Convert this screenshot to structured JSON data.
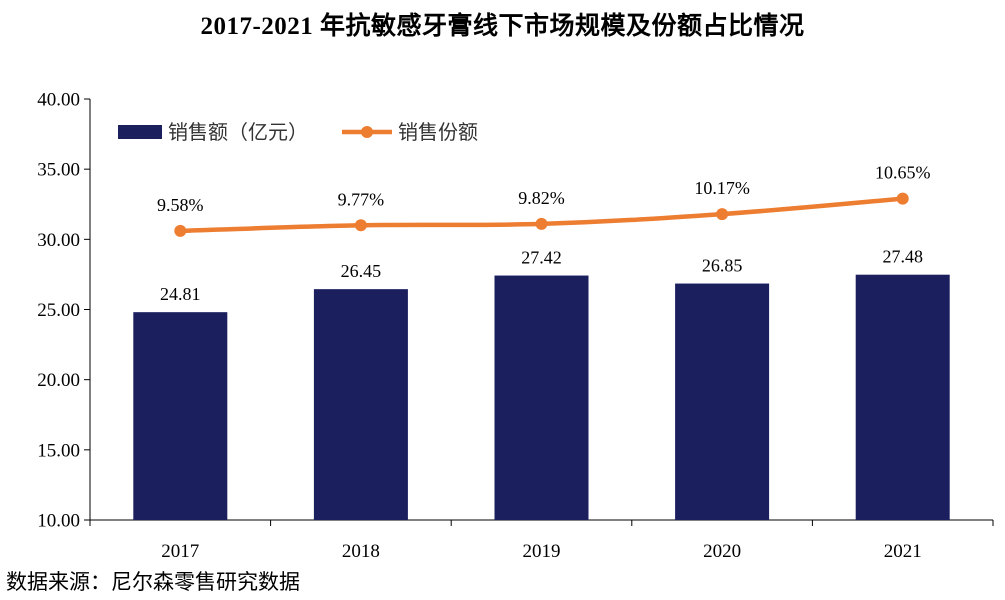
{
  "chart_data": {
    "type": "bar",
    "title": "2017-2021 年抗敏感牙膏线下市场规模及份额占比情况",
    "categories": [
      "2017",
      "2018",
      "2019",
      "2020",
      "2021"
    ],
    "series": [
      {
        "name": "销售额（亿元）",
        "kind": "bar",
        "values": [
          24.81,
          26.45,
          27.42,
          26.85,
          27.48
        ],
        "labels": [
          "24.81",
          "26.45",
          "27.42",
          "26.85",
          "27.48"
        ],
        "color": "#1b1f5e"
      },
      {
        "name": "销售份额",
        "kind": "line",
        "values_percent": [
          9.58,
          9.77,
          9.82,
          10.17,
          10.65
        ],
        "plotted_on_left_axis": [
          30.6,
          31.0,
          31.1,
          31.8,
          32.9
        ],
        "labels": [
          "9.58%",
          "9.77%",
          "9.82%",
          "10.17%",
          "10.65%"
        ],
        "color": "#ed7d31"
      }
    ],
    "ylim": [
      10,
      40
    ],
    "yticks": [
      10,
      15,
      20,
      25,
      30,
      35,
      40
    ],
    "ytick_labels": [
      "10.00",
      "15.00",
      "20.00",
      "25.00",
      "30.00",
      "35.00",
      "40.00"
    ],
    "xlabel": "",
    "ylabel": "",
    "grid": false,
    "legend_position": "top-left",
    "source": "数据来源：尼尔森零售研究数据"
  }
}
